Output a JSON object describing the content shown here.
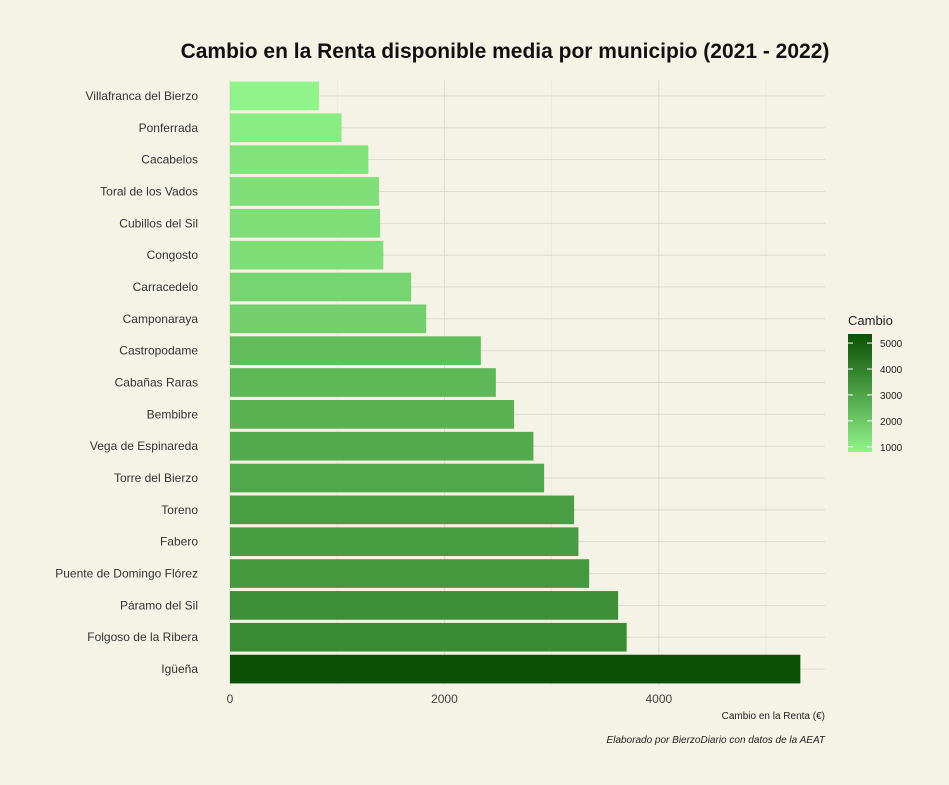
{
  "chart_data": {
    "type": "bar",
    "orientation": "horizontal",
    "title": "Cambio en la Renta disponible media por municipio (2021 - 2022)",
    "xlabel": "Cambio en la Renta (€)",
    "ylabel": "",
    "caption": "Elaborado por BierzoDiario con datos de la AEAT",
    "xlim": [
      0,
      5550
    ],
    "x_ticks": [
      0,
      2000,
      4000
    ],
    "grid": true,
    "categories": [
      "Villafranca del Bierzo",
      "Ponferrada",
      "Cacabelos",
      "Toral de los Vados",
      "Cubillos del Sil",
      "Congosto",
      "Carracedelo",
      "Camponaraya",
      "Castropodame",
      "Cabañas Raras",
      "Bembibre",
      "Vega de Espinareda",
      "Torre del Bierzo",
      "Toreno",
      "Fabero",
      "Puente de Domingo Flórez",
      "Páramo del Sil",
      "Folgoso de la Ribera",
      "Igüeña"
    ],
    "values": [
      830,
      1040,
      1290,
      1390,
      1400,
      1430,
      1690,
      1830,
      2340,
      2480,
      2650,
      2830,
      2930,
      3210,
      3250,
      3350,
      3620,
      3700,
      5320
    ],
    "legend": {
      "title": "Cambio",
      "position": "right",
      "min": 800,
      "max": 5350,
      "ticks": [
        1000,
        2000,
        3000,
        4000,
        5000
      ],
      "color_low": "#90f58a",
      "color_high": "#0a4f03"
    }
  }
}
